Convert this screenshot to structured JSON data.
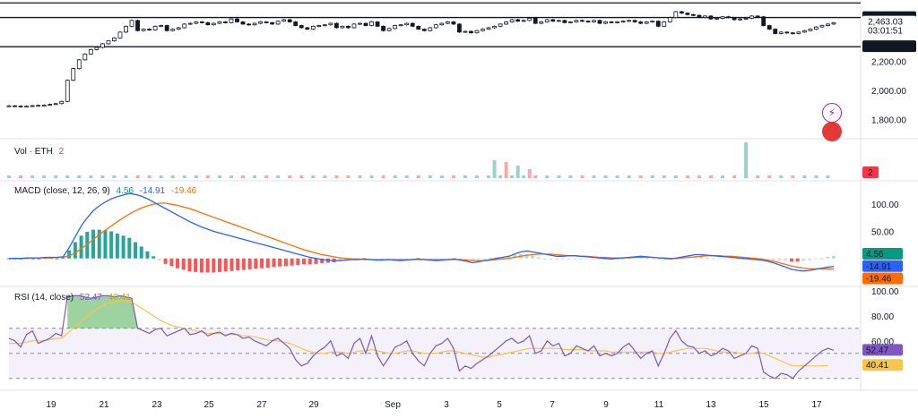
{
  "chart_data": [
    {
      "type": "candlestick",
      "pane": "price",
      "instrument": "ETH",
      "y_ticks": [
        1800,
        2000,
        2200,
        2300,
        2500
      ],
      "ylim": [
        1700,
        2620
      ],
      "horizontal_lines": [
        2300,
        2500,
        2600
      ],
      "last_price": "2,463.03",
      "countdown": "03:01:51",
      "line_labels": [
        "2,500.00",
        "2,300.00"
      ],
      "closes": [
        1895,
        1893,
        1890,
        1892,
        1896,
        1898,
        1900,
        1905,
        1910,
        1925,
        2070,
        2150,
        2210,
        2250,
        2280,
        2295,
        2320,
        2340,
        2360,
        2400,
        2440,
        2480,
        2410,
        2420,
        2415,
        2440,
        2445,
        2410,
        2420,
        2430,
        2455,
        2460,
        2470,
        2465,
        2450,
        2460,
        2470,
        2465,
        2490,
        2470,
        2455,
        2450,
        2460,
        2470,
        2465,
        2455,
        2475,
        2485,
        2470,
        2445,
        2430,
        2420,
        2440,
        2445,
        2450,
        2460,
        2430,
        2440,
        2430,
        2455,
        2460,
        2445,
        2470,
        2440,
        2410,
        2425,
        2445,
        2450,
        2460,
        2440,
        2420,
        2410,
        2430,
        2450,
        2460,
        2470,
        2455,
        2400,
        2405,
        2395,
        2410,
        2420,
        2430,
        2440,
        2455,
        2470,
        2485,
        2475,
        2480,
        2495,
        2460,
        2470,
        2485,
        2475,
        2480,
        2465,
        2470,
        2480,
        2475,
        2470,
        2480,
        2460,
        2470,
        2465,
        2470,
        2475,
        2480,
        2470,
        2460,
        2470,
        2475,
        2440,
        2470,
        2500,
        2540,
        2530,
        2520,
        2515,
        2500,
        2510,
        2490,
        2495,
        2505,
        2500,
        2485,
        2490,
        2495,
        2510,
        2505,
        2445,
        2420,
        2390,
        2400,
        2395,
        2390,
        2400,
        2410,
        2420,
        2435,
        2445,
        2455,
        2463
      ]
    },
    {
      "type": "bar",
      "pane": "volume",
      "title": "Vol · ETH",
      "value_label": "2",
      "spikes": [
        {
          "x": 83,
          "value": 20
        },
        {
          "x": 85,
          "value": 18
        },
        {
          "x": 87,
          "value": 14
        },
        {
          "x": 89,
          "value": 10
        },
        {
          "x": 126,
          "value": 40
        }
      ]
    },
    {
      "type": "line",
      "pane": "macd",
      "title": "MACD (close, 12, 26, 9)",
      "values": [
        "4.56",
        "-14.91",
        "-19.46"
      ],
      "y_ticks": [
        50,
        100
      ],
      "ylim": [
        -45,
        130
      ],
      "series": [
        {
          "name": "MACD",
          "color": "#2962ff",
          "values": [
            0,
            0,
            0,
            1,
            1,
            1,
            2,
            2,
            2,
            3,
            20,
            40,
            60,
            75,
            88,
            97,
            104,
            110,
            114,
            117,
            120,
            118,
            115,
            110,
            104,
            98,
            92,
            86,
            80,
            74,
            68,
            63,
            58,
            54,
            50,
            47,
            44,
            41,
            38,
            35,
            32,
            29,
            26,
            23,
            20,
            17,
            14,
            11,
            8,
            5,
            2,
            0,
            -2,
            -3,
            -4,
            -4,
            -3,
            -2,
            -2,
            -1,
            -2,
            -3,
            -3,
            -2,
            -3,
            -4,
            -3,
            -2,
            -1,
            -2,
            -3,
            -4,
            -3,
            -2,
            -1,
            -3,
            -5,
            -8,
            -6,
            -4,
            -2,
            0,
            2,
            4,
            8,
            12,
            14,
            12,
            10,
            8,
            6,
            4,
            4,
            5,
            5,
            4,
            3,
            2,
            1,
            0,
            -1,
            0,
            1,
            2,
            3,
            4,
            3,
            2,
            1,
            0,
            -1,
            1,
            3,
            5,
            7,
            7,
            6,
            5,
            4,
            3,
            2,
            1,
            0,
            -1,
            -2,
            -3,
            -5,
            -8,
            -12,
            -16,
            -20,
            -22,
            -23,
            -22,
            -20,
            -18,
            -16,
            -15
          ]
        },
        {
          "name": "Signal",
          "color": "#ff6d00",
          "values": [
            0,
            0,
            0,
            0,
            1,
            1,
            1,
            1,
            2,
            2,
            5,
            10,
            18,
            26,
            35,
            44,
            52,
            60,
            68,
            75,
            82,
            88,
            93,
            97,
            100,
            102,
            102,
            100,
            98,
            95,
            92,
            88,
            84,
            80,
            76,
            72,
            68,
            64,
            60,
            56,
            52,
            48,
            44,
            40,
            36,
            32,
            28,
            24,
            20,
            16,
            13,
            10,
            7,
            5,
            3,
            1,
            0,
            -1,
            -1,
            -2,
            -2,
            -2,
            -2,
            -2,
            -2,
            -2,
            -2,
            -2,
            -2,
            -2,
            -2,
            -2,
            -2,
            -2,
            -2,
            -2,
            -3,
            -4,
            -4,
            -4,
            -3,
            -2,
            -1,
            0,
            2,
            4,
            6,
            7,
            8,
            8,
            8,
            7,
            6,
            5,
            5,
            4,
            4,
            3,
            2,
            2,
            1,
            1,
            1,
            1,
            2,
            2,
            2,
            2,
            1,
            1,
            0,
            0,
            1,
            2,
            3,
            4,
            5,
            5,
            5,
            4,
            4,
            3,
            2,
            1,
            0,
            -1,
            -3,
            -5,
            -8,
            -11,
            -14,
            -16,
            -18,
            -19,
            -19,
            -19,
            -19,
            -19.5
          ]
        }
      ]
    },
    {
      "type": "line",
      "pane": "rsi",
      "title": "RSI (14, close)",
      "values": [
        "52.47",
        "40.41"
      ],
      "y_ticks": [
        60,
        80,
        100
      ],
      "ylim": [
        22,
        102
      ],
      "band": [
        30,
        70
      ],
      "series": [
        {
          "name": "RSI",
          "color": "#7e57c2",
          "values": [
            62,
            60,
            55,
            65,
            68,
            58,
            60,
            62,
            66,
            64,
            95,
            96,
            96,
            95,
            94,
            95,
            96,
            96,
            95,
            96,
            95,
            94,
            70,
            68,
            66,
            69,
            70,
            64,
            66,
            68,
            70,
            65,
            66,
            68,
            64,
            66,
            67,
            64,
            66,
            65,
            62,
            63,
            60,
            58,
            56,
            60,
            62,
            58,
            54,
            45,
            40,
            42,
            48,
            52,
            55,
            60,
            48,
            50,
            46,
            58,
            62,
            50,
            64,
            48,
            40,
            47,
            55,
            57,
            60,
            50,
            44,
            40,
            50,
            56,
            58,
            62,
            54,
            36,
            40,
            38,
            42,
            45,
            48,
            52,
            56,
            60,
            62,
            58,
            60,
            64,
            50,
            52,
            60,
            56,
            58,
            48,
            50,
            56,
            54,
            52,
            56,
            48,
            50,
            48,
            50,
            55,
            58,
            52,
            46,
            50,
            52,
            40,
            50,
            62,
            68,
            60,
            56,
            55,
            50,
            52,
            48,
            50,
            54,
            52,
            46,
            48,
            50,
            56,
            54,
            35,
            32,
            30,
            34,
            33,
            30,
            36,
            40,
            44,
            48,
            52,
            54,
            52.47
          ]
        },
        {
          "name": "RSI-based MA",
          "color": "#f7c548",
          "values": [
            58,
            58,
            58,
            59,
            60,
            60,
            60,
            61,
            62,
            62,
            66,
            70,
            74,
            78,
            82,
            85,
            88,
            90,
            91,
            92,
            92,
            91,
            88,
            85,
            82,
            79,
            76,
            74,
            72,
            71,
            70,
            69,
            68,
            67,
            66,
            66,
            66,
            65,
            65,
            65,
            64,
            64,
            63,
            62,
            61,
            60,
            60,
            59,
            58,
            56,
            54,
            52,
            51,
            50,
            50,
            51,
            51,
            51,
            50,
            51,
            52,
            52,
            53,
            52,
            51,
            50,
            50,
            51,
            52,
            52,
            51,
            50,
            50,
            50,
            51,
            52,
            52,
            51,
            50,
            49,
            48,
            47,
            47,
            48,
            49,
            50,
            51,
            52,
            53,
            54,
            54,
            54,
            54,
            54,
            54,
            53,
            53,
            53,
            53,
            52,
            52,
            52,
            52,
            51,
            51,
            51,
            51,
            51,
            51,
            51,
            51,
            50,
            50,
            51,
            52,
            53,
            54,
            54,
            54,
            54,
            53,
            52,
            51,
            51,
            51,
            50,
            50,
            50,
            51,
            50,
            48,
            46,
            44,
            42,
            40,
            40,
            40,
            40,
            40,
            40,
            40.41
          ]
        }
      ]
    },
    {
      "type": "axis",
      "x_ticks": [
        "19",
        "21",
        "23",
        "25",
        "27",
        "29",
        "Sep",
        "3",
        "5",
        "7",
        "9",
        "11",
        "13",
        "15",
        "17"
      ]
    }
  ],
  "price_labels": [
    "2,500.00",
    "2,463.03",
    "03:01:51",
    "2,300.00",
    "2,200.00",
    "2,000.00",
    "1,800.00"
  ],
  "macd_labels": [
    "100.00",
    "50.00",
    "4.56",
    "-14.91",
    "-19.46"
  ],
  "rsi_labels": [
    "100.00",
    "80.00",
    "60.00",
    "52.47",
    "40.41"
  ],
  "volume_legend": {
    "title": "Vol · ETH",
    "value": "2"
  },
  "macd_legend": {
    "title": "MACD (close, 12, 26, 9)",
    "v1": "4.56",
    "v2": "-14.91",
    "v3": "-19.46"
  },
  "rsi_legend": {
    "title": "RSI (14, close)",
    "v1": "52.47",
    "v2": "40.41"
  },
  "colors": {
    "up": "#089981",
    "down": "#f23645",
    "macd": "#2962ff",
    "signal": "#ff6d00",
    "rsi": "#7e57c2",
    "rsi_ma": "#f7c548"
  }
}
